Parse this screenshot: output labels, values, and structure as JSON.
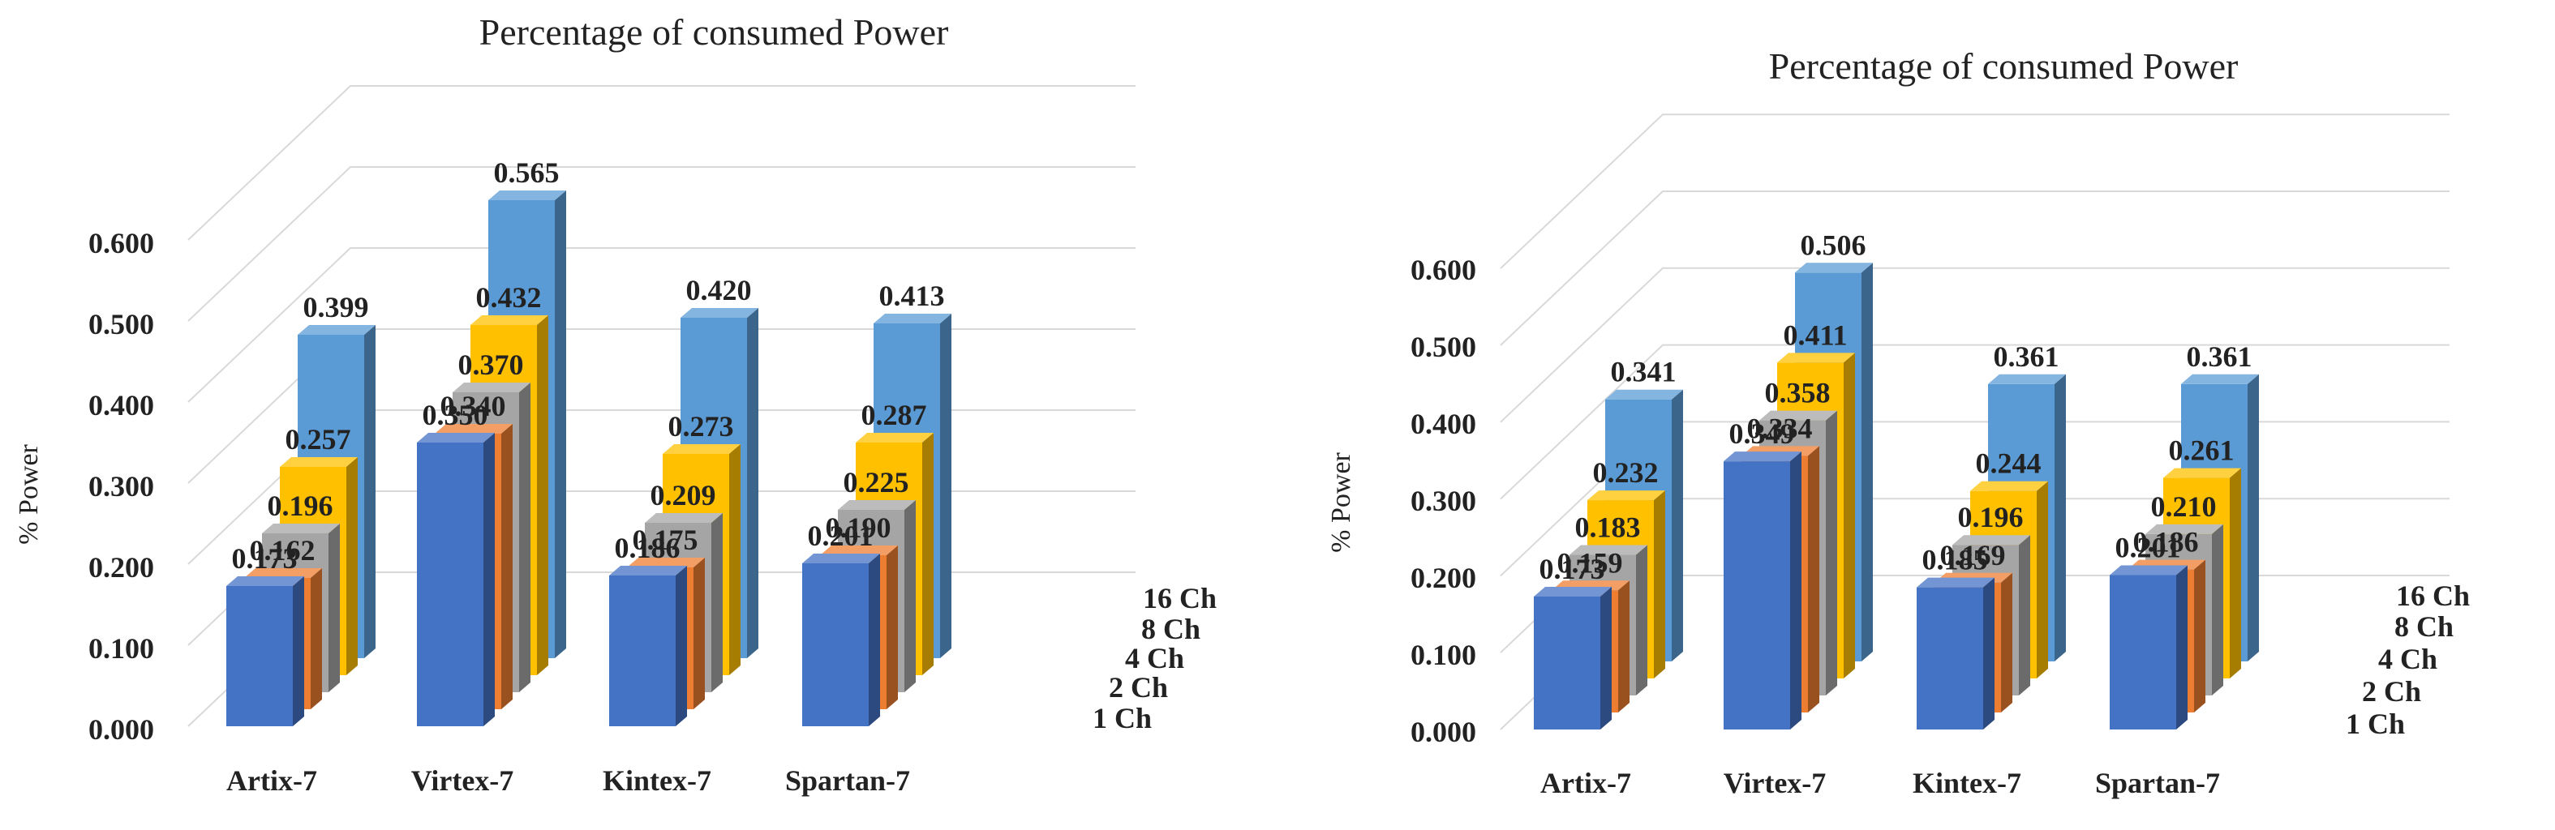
{
  "chart_data": [
    {
      "type": "bar",
      "title": "Percentage of consumed Power",
      "ylabel": "% Power",
      "xlabel": "",
      "ylim": [
        0,
        0.6
      ],
      "yticks": [
        "0.000",
        "0.100",
        "0.200",
        "0.300",
        "0.400",
        "0.500",
        "0.600"
      ],
      "categories": [
        "Artix-7",
        "Virtex-7",
        "Kintex-7",
        "Spartan-7"
      ],
      "series": [
        {
          "name": "1 Ch",
          "color": "#4472C4",
          "values": [
            0.173,
            0.35,
            0.186,
            0.201
          ],
          "labels": [
            "0.173",
            "0.350",
            "0.186",
            "0.201"
          ]
        },
        {
          "name": "2 Ch",
          "color": "#ED7D31",
          "values": [
            0.162,
            0.34,
            0.175,
            0.19
          ],
          "labels": [
            "0.162",
            "0.340",
            "0.175",
            "0.190"
          ]
        },
        {
          "name": "4 Ch",
          "color": "#A5A5A5",
          "values": [
            0.196,
            0.37,
            0.209,
            0.225
          ],
          "labels": [
            "0.196",
            "0.370",
            "0.209",
            "0.225"
          ]
        },
        {
          "name": "8 Ch",
          "color": "#FFC000",
          "values": [
            0.257,
            0.432,
            0.273,
            0.287
          ],
          "labels": [
            "0.257",
            "0.432",
            "0.273",
            "0.287"
          ]
        },
        {
          "name": "16 Ch",
          "color": "#5B9BD5",
          "values": [
            0.399,
            0.565,
            0.42,
            0.413
          ],
          "labels": [
            "0.399",
            "0.565",
            "0.420",
            "0.413"
          ]
        }
      ]
    },
    {
      "type": "bar",
      "title": "Percentage of consumed Power",
      "ylabel": "% Power",
      "xlabel": "",
      "ylim": [
        0,
        0.6
      ],
      "yticks": [
        "0.000",
        "0.100",
        "0.200",
        "0.300",
        "0.400",
        "0.500",
        "0.600"
      ],
      "categories": [
        "Artix-7",
        "Virtex-7",
        "Kintex-7",
        "Spartan-7"
      ],
      "series": [
        {
          "name": "1 Ch",
          "color": "#4472C4",
          "values": [
            0.173,
            0.349,
            0.185,
            0.201
          ],
          "labels": [
            "0.173",
            "0.349",
            "0.185",
            "0.201"
          ]
        },
        {
          "name": "2 Ch",
          "color": "#ED7D31",
          "values": [
            0.159,
            0.334,
            0.169,
            0.186
          ],
          "labels": [
            "0.159",
            "0.334",
            "0.169",
            "0.186"
          ]
        },
        {
          "name": "4 Ch",
          "color": "#A5A5A5",
          "values": [
            0.183,
            0.358,
            0.196,
            0.21
          ],
          "labels": [
            "0.183",
            "0.358",
            "0.196",
            "0.210"
          ]
        },
        {
          "name": "8 Ch",
          "color": "#FFC000",
          "values": [
            0.232,
            0.411,
            0.244,
            0.261
          ],
          "labels": [
            "0.232",
            "0.411",
            "0.244",
            "0.261"
          ]
        },
        {
          "name": "16 Ch",
          "color": "#5B9BD5",
          "values": [
            0.341,
            0.506,
            0.361,
            0.361
          ],
          "labels": [
            "0.341",
            "0.506",
            "0.361",
            "0.361"
          ]
        }
      ]
    }
  ]
}
